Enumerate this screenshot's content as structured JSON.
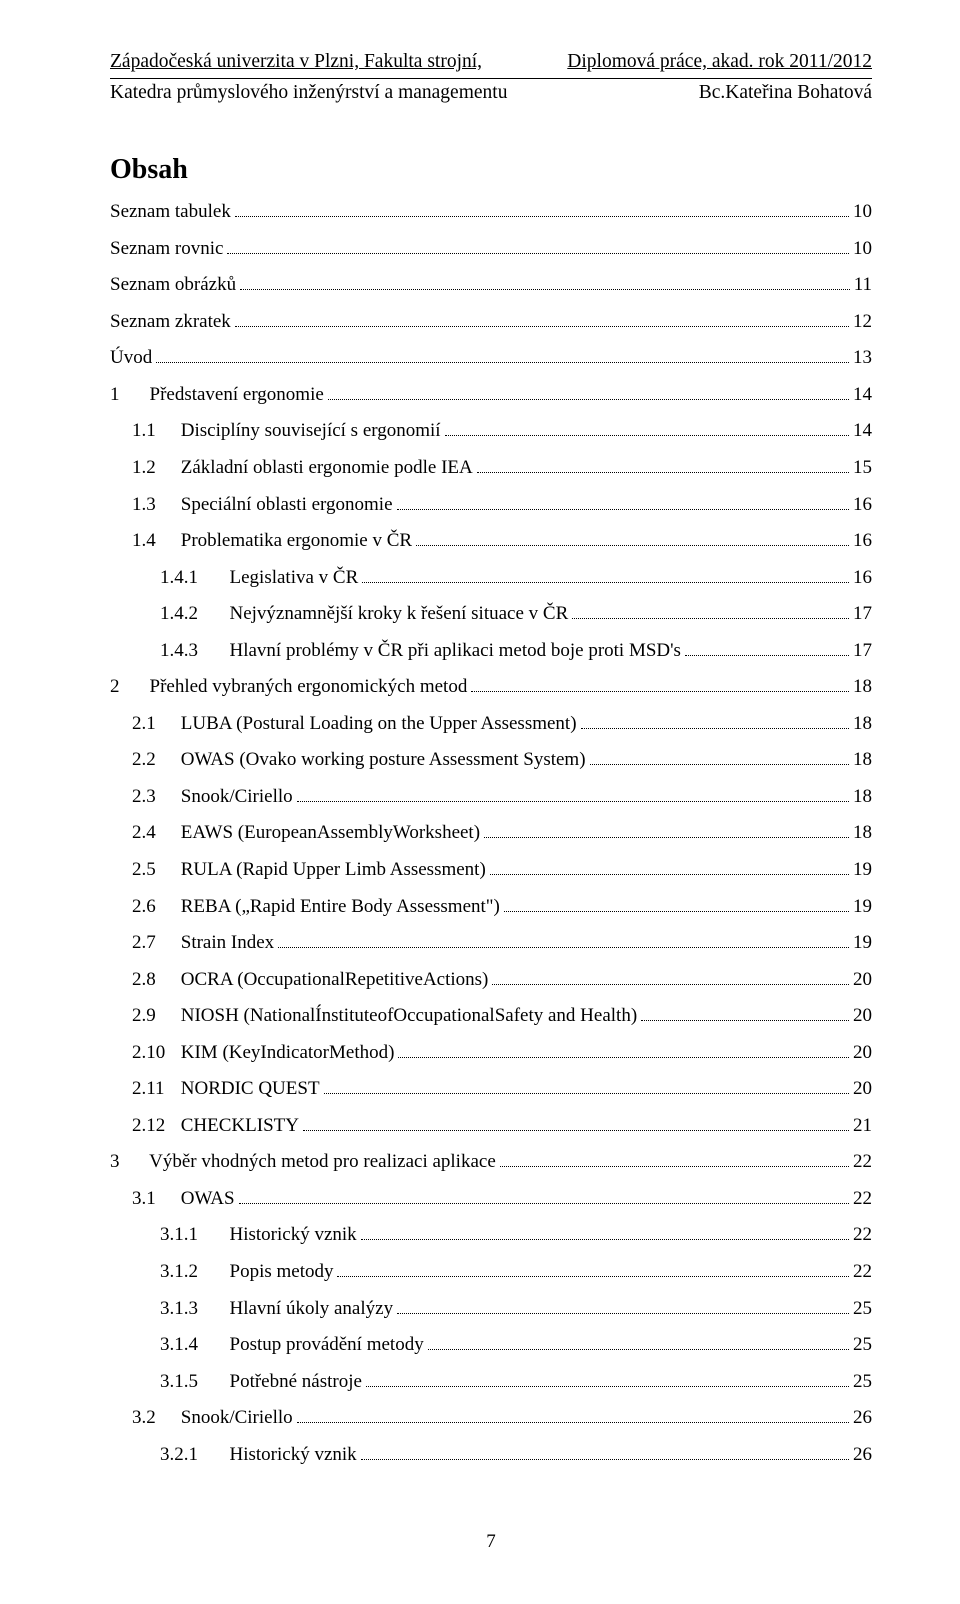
{
  "header": {
    "left_top": "Západočeská univerzita v Plzni, Fakulta strojní,",
    "right_top": "Diplomová práce, akad. rok 2011/2012",
    "left_bottom": "Katedra průmyslového inženýrství a managementu",
    "right_bottom": "Bc.Kateřina Bohatová"
  },
  "title": "Obsah",
  "toc": [
    {
      "level": 0,
      "num": "",
      "label": "Seznam tabulek",
      "page": "10"
    },
    {
      "level": 0,
      "num": "",
      "label": "Seznam rovnic",
      "page": "10"
    },
    {
      "level": 0,
      "num": "",
      "label": "Seznam obrázků",
      "page": "11"
    },
    {
      "level": 0,
      "num": "",
      "label": "Seznam zkratek",
      "page": "12"
    },
    {
      "level": 0,
      "num": "",
      "label": "Úvod",
      "page": "13"
    },
    {
      "level": 1,
      "num": "1",
      "label": "Představení ergonomie",
      "page": "14"
    },
    {
      "level": 2,
      "num": "1.1",
      "label": "Disciplíny související s ergonomií",
      "page": "14"
    },
    {
      "level": 2,
      "num": "1.2",
      "label": "Základní oblasti ergonomie podle IEA",
      "page": "15"
    },
    {
      "level": 2,
      "num": "1.3",
      "label": "Speciální oblasti ergonomie",
      "page": "16"
    },
    {
      "level": 2,
      "num": "1.4",
      "label": "Problematika ergonomie v ČR",
      "page": "16"
    },
    {
      "level": 3,
      "num": "1.4.1",
      "label": "Legislativa v ČR",
      "page": "16"
    },
    {
      "level": 3,
      "num": "1.4.2",
      "label": "Nejvýznamnější kroky k řešení situace v ČR",
      "page": "17"
    },
    {
      "level": 3,
      "num": "1.4.3",
      "label": "Hlavní problémy v ČR při aplikaci metod boje proti MSD's",
      "page": "17"
    },
    {
      "level": 1,
      "num": "2",
      "label": "Přehled vybraných ergonomických metod",
      "page": "18"
    },
    {
      "level": 2,
      "num": "2.1",
      "label": "LUBA (Postural Loading on the Upper Assessment)",
      "page": "18"
    },
    {
      "level": 2,
      "num": "2.2",
      "label": "OWAS (Ovako working posture Assessment System)",
      "page": "18"
    },
    {
      "level": 2,
      "num": "2.3",
      "label": "Snook/Ciriello",
      "page": "18"
    },
    {
      "level": 2,
      "num": "2.4",
      "label": "EAWS (EuropeanAssemblyWorksheet)",
      "page": "18"
    },
    {
      "level": 2,
      "num": "2.5",
      "label": "RULA (Rapid Upper Limb Assessment)",
      "page": "19"
    },
    {
      "level": 2,
      "num": "2.6",
      "label": "REBA („Rapid Entire Body Assessment\")",
      "page": "19"
    },
    {
      "level": 2,
      "num": "2.7",
      "label": "Strain Index",
      "page": "19"
    },
    {
      "level": 2,
      "num": "2.8",
      "label": "OCRA (OccupationalRepetitiveActions)",
      "page": "20"
    },
    {
      "level": 2,
      "num": "2.9",
      "label": "NIOSH (NationalÍnstituteofOccupationalSafety and Health)",
      "page": "20"
    },
    {
      "level": 2,
      "num": "2.10",
      "label": "KIM (KeyIndicatorMethod)",
      "page": "20"
    },
    {
      "level": 2,
      "num": "2.11",
      "label": "NORDIC QUEST",
      "page": "20"
    },
    {
      "level": 2,
      "num": "2.12",
      "label": "CHECKLISTY",
      "page": "21"
    },
    {
      "level": 1,
      "num": "3",
      "label": "Výběr vhodných metod pro realizaci aplikace",
      "page": "22"
    },
    {
      "level": 2,
      "num": "3.1",
      "label": "OWAS",
      "page": "22"
    },
    {
      "level": 3,
      "num": "3.1.1",
      "label": "Historický vznik",
      "page": "22"
    },
    {
      "level": 3,
      "num": "3.1.2",
      "label": "Popis metody",
      "page": "22"
    },
    {
      "level": 3,
      "num": "3.1.3",
      "label": "Hlavní úkoly analýzy",
      "page": "25"
    },
    {
      "level": 3,
      "num": "3.1.4",
      "label": "Postup provádění metody",
      "page": "25"
    },
    {
      "level": 3,
      "num": "3.1.5",
      "label": "Potřebné nástroje",
      "page": "25"
    },
    {
      "level": 2,
      "num": "3.2",
      "label": "Snook/Ciriello",
      "page": "26"
    },
    {
      "level": 3,
      "num": "3.2.1",
      "label": "Historický vznik",
      "page": "26"
    }
  ],
  "footer_page": "7"
}
